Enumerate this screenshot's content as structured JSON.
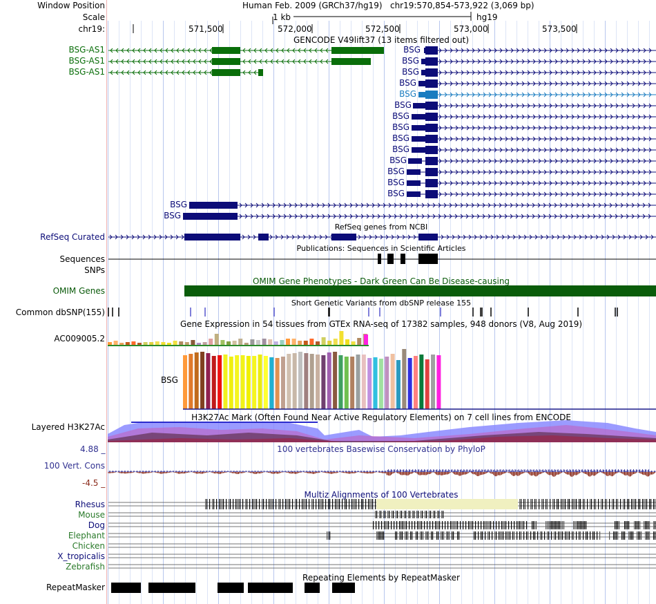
{
  "header": {
    "window_position_label": "Window Position",
    "scale_label": "Scale",
    "chrom_label": "chr19:",
    "assembly": "Human Feb. 2009 (GRCh37/hg19)",
    "position": "chr19:570,854-573,922 (3,069 bp)",
    "scale_value": "1 kb",
    "scale_assembly": "hg19",
    "ruler_ticks": [
      "571,500",
      "572,000",
      "572,500",
      "573,000",
      "573,500"
    ]
  },
  "gencode": {
    "title": "GENCODE V49lift37 (13 items filtered out)",
    "left_genes": [
      "BSG-AS1",
      "BSG-AS1",
      "BSG-AS1"
    ],
    "right_genes": [
      "BSG",
      "BSG",
      "BSG",
      "BSG",
      "BSG",
      "BSG",
      "BSG",
      "BSG",
      "BSG",
      "BSG",
      "BSG",
      "BSG",
      "BSG",
      "BSG"
    ],
    "lower_genes": [
      "BSG",
      "BSG"
    ],
    "highlight_color": "#1a7cc0"
  },
  "refseq": {
    "label": "RefSeq Curated",
    "title": "RefSeq genes from NCBI"
  },
  "publications": {
    "title": "Publications: Sequences in Scientific Articles",
    "label": "Sequences"
  },
  "snps_label": "SNPs",
  "omim": {
    "label": "OMIM Genes",
    "title": "OMIM Gene Phenotypes - Dark Green Can Be Disease-causing",
    "color": "#0a5c0a"
  },
  "dbsnp": {
    "label": "Common dbSNP(155)",
    "title": "Short Genetic Variants from dbSNP release 155"
  },
  "gtex": {
    "title": "Gene Expression in 54 tissues from GTEx RNA-seq of 17382 samples, 948 donors (V8, Aug 2019)",
    "gene1": "AC009005.2",
    "gene2": "BSG"
  },
  "h3k27ac": {
    "label": "Layered H3K27Ac",
    "title": "H3K27Ac Mark (Often Found Near Active Regulatory Elements) on 7 cell lines from ENCODE"
  },
  "phylop": {
    "max": "4.88 _",
    "min": "-4.5 _",
    "label": "100 Vert. Cons",
    "title": "100 vertebrates Basewise Conservation by PhyloP"
  },
  "multiz": {
    "title": "Multiz Alignments of 100 Vertebrates",
    "species": [
      "Rhesus",
      "Mouse",
      "Dog",
      "Elephant",
      "Chicken",
      "X_tropicalis",
      "Zebrafish"
    ]
  },
  "repeatmasker": {
    "label": "RepeatMasker",
    "title": "Repeating Elements by RepeatMasker"
  }
}
